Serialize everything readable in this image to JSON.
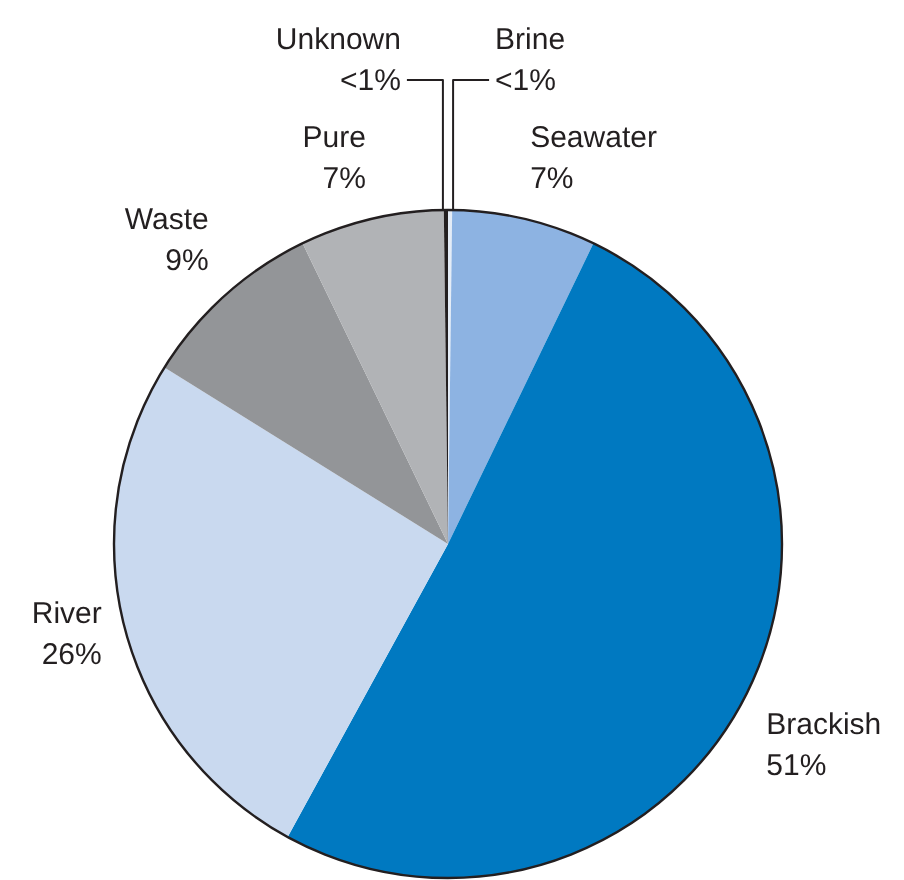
{
  "chart_data": {
    "type": "pie",
    "categories": [
      "Brine",
      "Seawater",
      "Brackish",
      "River",
      "Waste",
      "Pure",
      "Unknown"
    ],
    "values": [
      0.2,
      7,
      51,
      26,
      9,
      7,
      0.2
    ],
    "colors": [
      "#e4ecf6",
      "#8db3e2",
      "#0079c1",
      "#c9d9ef",
      "#939598",
      "#b1b3b6",
      "#231f20"
    ],
    "value_labels": [
      "<1%",
      "7%",
      "51%",
      "26%",
      "9%",
      "7%",
      "<1%"
    ]
  }
}
